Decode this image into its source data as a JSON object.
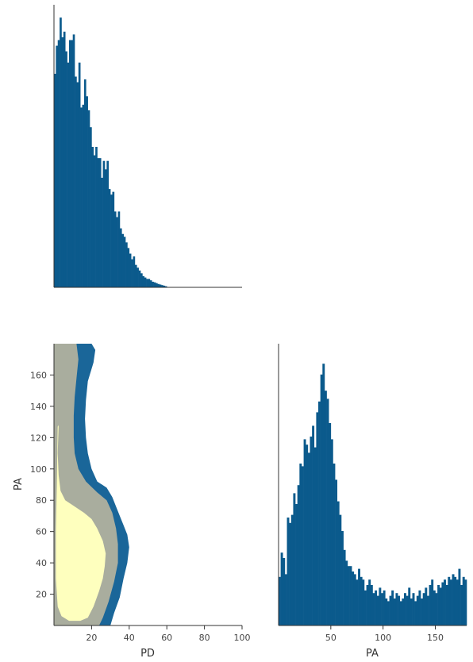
{
  "chart_data": [
    {
      "type": "bar",
      "panel": "marginal-histogram-pd",
      "color": "#0b5a8c",
      "xlim": [
        0,
        100
      ],
      "bin_width": 1,
      "x_start": 0,
      "relative_heights": [
        0.76,
        0.86,
        0.88,
        0.96,
        0.89,
        0.91,
        0.84,
        0.8,
        0.88,
        0.88,
        0.9,
        0.75,
        0.73,
        0.8,
        0.64,
        0.65,
        0.74,
        0.68,
        0.63,
        0.57,
        0.5,
        0.47,
        0.5,
        0.46,
        0.46,
        0.39,
        0.45,
        0.42,
        0.45,
        0.35,
        0.33,
        0.34,
        0.27,
        0.25,
        0.27,
        0.21,
        0.19,
        0.18,
        0.16,
        0.14,
        0.12,
        0.1,
        0.11,
        0.08,
        0.07,
        0.06,
        0.05,
        0.04,
        0.035,
        0.03,
        0.03,
        0.025,
        0.02,
        0.018,
        0.015,
        0.012,
        0.01,
        0.008,
        0.006,
        0.004
      ],
      "yticks": "none"
    },
    {
      "type": "kde-contour",
      "panel": "joint-pd-vs-pa",
      "xlabel": "PD",
      "ylabel": "PA",
      "xlim": [
        0,
        100
      ],
      "ylim": [
        0,
        180
      ],
      "xticks": [
        "20",
        "40",
        "60",
        "80",
        "100"
      ],
      "yticks": [
        "20",
        "40",
        "60",
        "80",
        "100",
        "120",
        "140",
        "160"
      ],
      "levels": [
        {
          "color": "#1a6699",
          "boundary": [
            [
              6,
              180
            ],
            [
              20,
              180
            ],
            [
              22,
              176
            ],
            [
              21,
              168
            ],
            [
              18,
              156
            ],
            [
              17,
              144
            ],
            [
              16.5,
              132
            ],
            [
              17,
              120
            ],
            [
              18,
              110
            ],
            [
              20,
              100
            ],
            [
              23,
              92
            ],
            [
              28,
              88
            ],
            [
              31,
              82
            ],
            [
              33,
              76
            ],
            [
              35,
              70
            ],
            [
              37,
              64
            ],
            [
              39,
              58
            ],
            [
              40,
              50
            ],
            [
              39,
              40
            ],
            [
              37,
              30
            ],
            [
              35,
              18
            ],
            [
              32,
              8
            ],
            [
              30,
              0
            ],
            [
              0,
              0
            ],
            [
              0,
              180
            ]
          ]
        },
        {
          "color": "#a9ad9e",
          "boundary": [
            [
              6,
              180
            ],
            [
              12,
              180
            ],
            [
              13,
              170
            ],
            [
              12,
              158
            ],
            [
              11,
              146
            ],
            [
              10.5,
              134
            ],
            [
              10.5,
              120
            ],
            [
              11,
              110
            ],
            [
              13,
              100
            ],
            [
              17,
              92
            ],
            [
              23,
              85
            ],
            [
              28,
              80
            ],
            [
              31,
              72
            ],
            [
              33,
              62
            ],
            [
              34,
              52
            ],
            [
              34,
              40
            ],
            [
              32,
              28
            ],
            [
              29,
              15
            ],
            [
              26,
              5
            ],
            [
              24,
              0
            ],
            [
              0,
              0
            ],
            [
              0,
              180
            ]
          ]
        },
        {
          "color": "#feffbe",
          "boundary": [
            [
              2.5,
              128
            ],
            [
              2,
              110
            ],
            [
              2.5,
              96
            ],
            [
              3.5,
              86
            ],
            [
              6,
              80
            ],
            [
              11,
              76
            ],
            [
              16,
              72
            ],
            [
              20,
              68
            ],
            [
              23,
              62
            ],
            [
              26,
              54
            ],
            [
              27.5,
              46
            ],
            [
              27,
              38
            ],
            [
              26,
              30
            ],
            [
              24,
              22
            ],
            [
              21,
              12
            ],
            [
              18,
              5
            ],
            [
              14,
              3
            ],
            [
              8,
              3
            ],
            [
              4,
              6
            ],
            [
              2,
              12
            ],
            [
              1,
              30
            ],
            [
              1,
              60
            ],
            [
              1.5,
              90
            ],
            [
              1.8,
              115
            ],
            [
              2,
              127
            ]
          ]
        }
      ]
    },
    {
      "type": "bar",
      "panel": "marginal-histogram-pa",
      "xlabel": "PA",
      "color": "#0b5a8c",
      "xlim": [
        0,
        180
      ],
      "xticks": [
        "50",
        "100",
        "150"
      ],
      "bin_width": 2,
      "x_start": 0,
      "relative_heights": [
        0.18,
        0.27,
        0.25,
        0.19,
        0.4,
        0.38,
        0.41,
        0.49,
        0.45,
        0.52,
        0.6,
        0.59,
        0.69,
        0.67,
        0.64,
        0.7,
        0.74,
        0.66,
        0.79,
        0.83,
        0.93,
        0.97,
        0.87,
        0.84,
        0.75,
        0.69,
        0.6,
        0.54,
        0.46,
        0.41,
        0.35,
        0.28,
        0.24,
        0.22,
        0.22,
        0.2,
        0.19,
        0.17,
        0.21,
        0.18,
        0.17,
        0.13,
        0.15,
        0.17,
        0.15,
        0.12,
        0.13,
        0.11,
        0.14,
        0.12,
        0.13,
        0.1,
        0.09,
        0.11,
        0.13,
        0.1,
        0.12,
        0.11,
        0.09,
        0.1,
        0.12,
        0.11,
        0.14,
        0.1,
        0.12,
        0.09,
        0.11,
        0.13,
        0.1,
        0.12,
        0.14,
        0.11,
        0.15,
        0.17,
        0.13,
        0.12,
        0.15,
        0.14,
        0.16,
        0.17,
        0.15,
        0.18,
        0.17,
        0.19,
        0.18,
        0.17,
        0.21,
        0.15,
        0.18,
        0.17
      ],
      "yticks": "none"
    }
  ]
}
